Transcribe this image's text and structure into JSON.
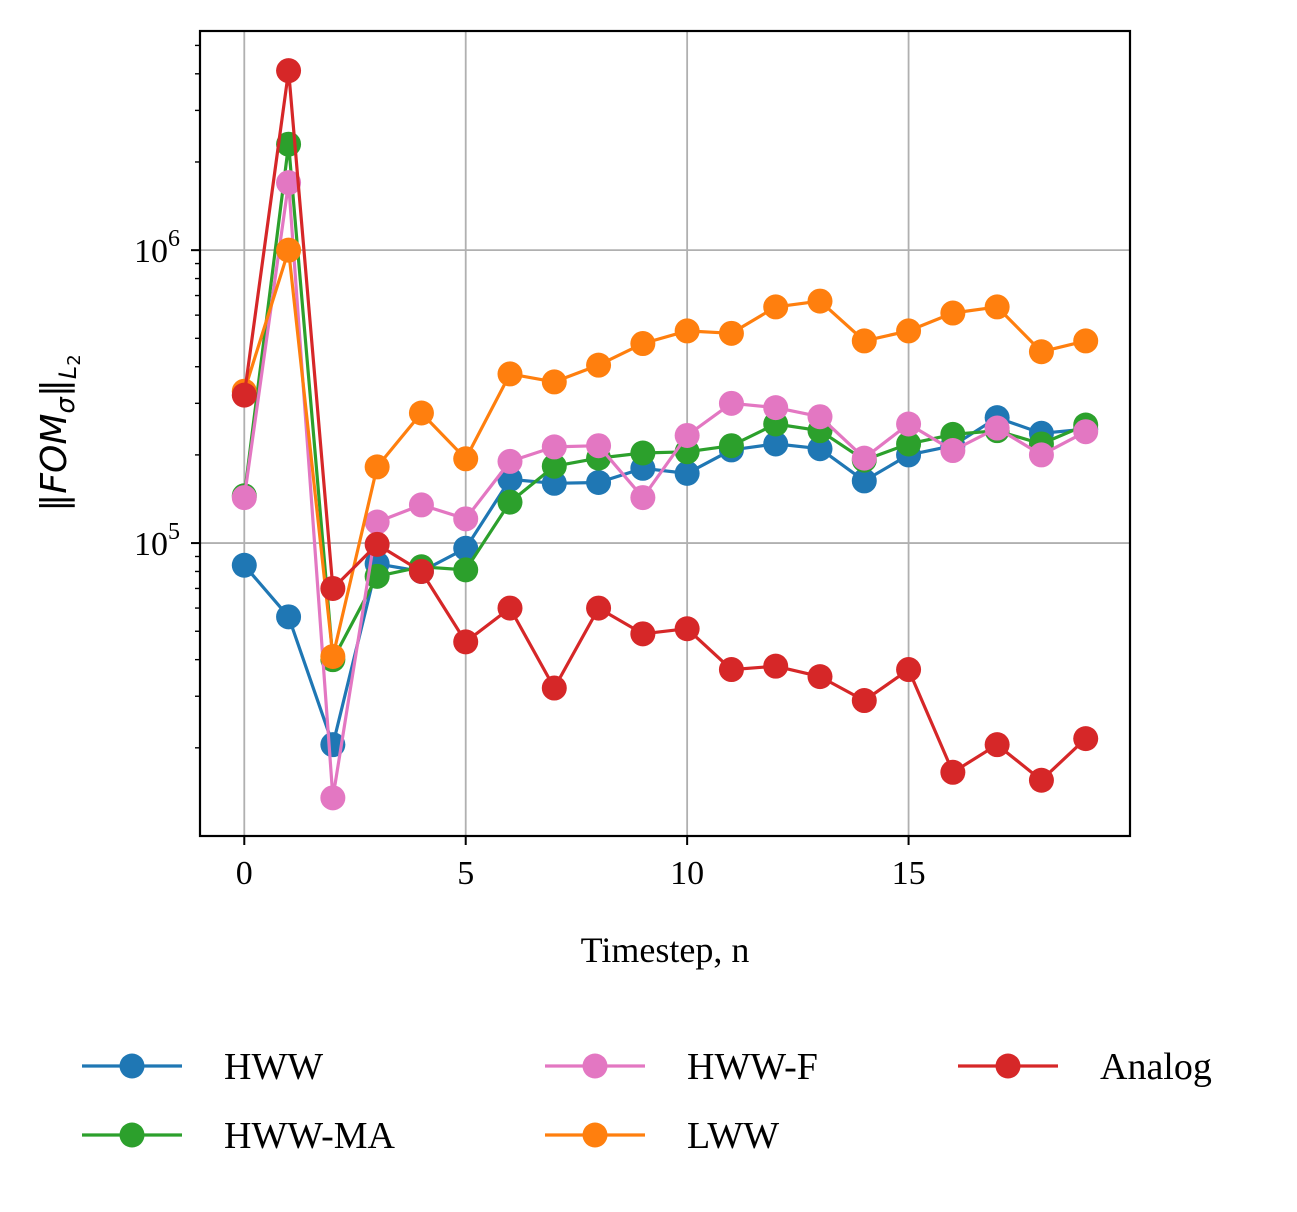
{
  "chart_data": {
    "type": "line",
    "title": "",
    "xlabel": "Timestep, n",
    "ylabel": "‖FOMσ‖L2",
    "ylabel_parts": {
      "norm": "‖",
      "fom": "FOM",
      "sigma": "σ",
      "sub": "L",
      "sub2": "2"
    },
    "yscale": "log",
    "xlim": [
      -1,
      20
    ],
    "ylim": [
      10000,
      5600000
    ],
    "x_ticks": [
      0,
      5,
      10,
      15
    ],
    "x_tick_labels": [
      "0",
      "5",
      "10",
      "15"
    ],
    "y_ticks": [
      100000,
      1000000
    ],
    "y_tick_labels": [
      {
        "base": "10",
        "exp": "5"
      },
      {
        "base": "10",
        "exp": "6"
      }
    ],
    "grid": true,
    "legend_position": "bottom-outside",
    "x": [
      0,
      1,
      2,
      3,
      4,
      5,
      6,
      7,
      8,
      9,
      10,
      11,
      12,
      13,
      14,
      15,
      16,
      17,
      18,
      19
    ],
    "series": [
      {
        "name": "HWW",
        "color": "#1f77b4",
        "values": [
          84000,
          56000,
          20500,
          85000,
          80000,
          96000,
          165000,
          160000,
          161000,
          180000,
          173000,
          208000,
          218000,
          210000,
          163000,
          200000,
          215000,
          268000,
          237000,
          245000
        ]
      },
      {
        "name": "HWW-MA",
        "color": "#2ca02c",
        "values": [
          145000,
          2300000,
          40000,
          77000,
          83000,
          81000,
          138000,
          183000,
          195000,
          203000,
          205000,
          215000,
          255000,
          242000,
          192000,
          218000,
          235000,
          242000,
          218000,
          253000
        ]
      },
      {
        "name": "HWW-F",
        "color": "#e377c2",
        "values": [
          143000,
          1700000,
          13500,
          118000,
          135000,
          121000,
          190000,
          213000,
          215000,
          143000,
          233000,
          300000,
          290000,
          270000,
          195000,
          255000,
          207000,
          247000,
          200000,
          240000
        ]
      },
      {
        "name": "LWW",
        "color": "#ff7f0e",
        "values": [
          330000,
          1000000,
          41000,
          182000,
          278000,
          194000,
          378000,
          355000,
          405000,
          480000,
          530000,
          520000,
          640000,
          670000,
          490000,
          530000,
          610000,
          640000,
          450000,
          490000
        ]
      },
      {
        "name": "Analog",
        "color": "#d62728",
        "values": [
          320000,
          4100000,
          70000,
          99000,
          80000,
          46000,
          60000,
          32000,
          60000,
          49000,
          51000,
          37000,
          38000,
          35000,
          29000,
          37000,
          16500,
          20500,
          15500,
          21500
        ]
      }
    ],
    "legend_order": [
      "HWW",
      "HWW-MA",
      "HWW-F",
      "LWW",
      "Analog"
    ]
  }
}
